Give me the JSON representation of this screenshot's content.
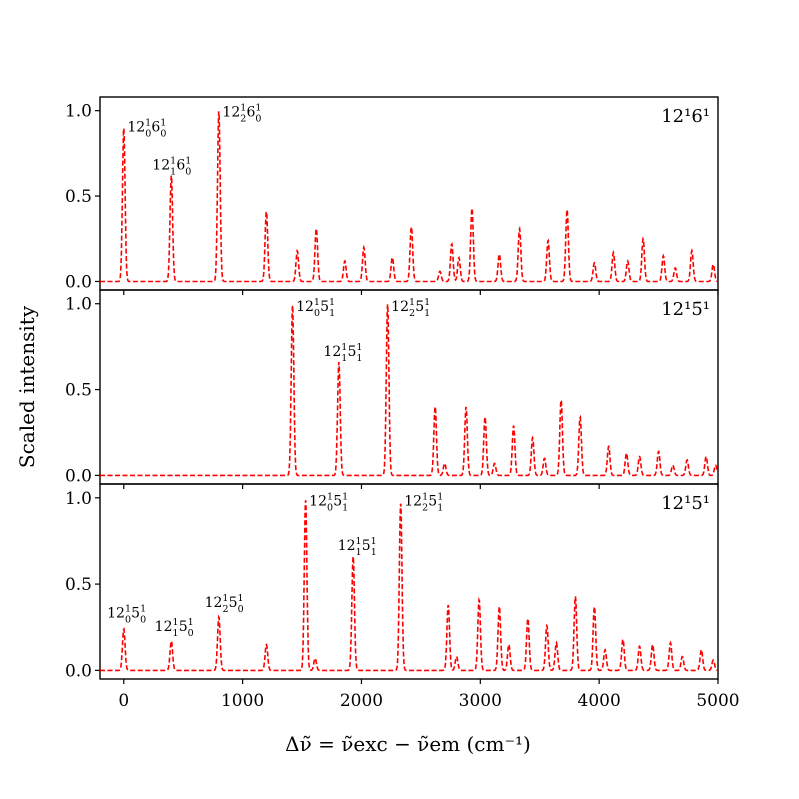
{
  "chart_data": {
    "type": "line",
    "xlabel": "Δν̃ = ν̃exc − ν̃em (cm⁻¹)",
    "ylabel": "Scaled intensity",
    "xlim": [
      -200,
      5000
    ],
    "ylim": [
      -0.05,
      1.08
    ],
    "x_ticks": [
      0,
      1000,
      2000,
      3000,
      4000,
      5000
    ],
    "y_ticks": [
      0.0,
      0.5,
      1.0
    ],
    "x_tick_labels": [
      "0",
      "1000",
      "2000",
      "3000",
      "4000",
      "5000"
    ],
    "y_tick_labels": [
      "0.0",
      "0.5",
      "1.0"
    ],
    "line_color": "#ff0000",
    "line_style": "dashed",
    "panels": [
      {
        "label": "12¹6¹",
        "series": [
          {
            "name": "12¹6¹",
            "peaks": [
              {
                "x": 0,
                "y": 0.9
              },
              {
                "x": 400,
                "y": 0.62
              },
              {
                "x": 800,
                "y": 1.0
              },
              {
                "x": 1200,
                "y": 0.41
              },
              {
                "x": 1460,
                "y": 0.18
              },
              {
                "x": 1620,
                "y": 0.31
              },
              {
                "x": 1860,
                "y": 0.12
              },
              {
                "x": 2020,
                "y": 0.2
              },
              {
                "x": 2260,
                "y": 0.14
              },
              {
                "x": 2420,
                "y": 0.32
              },
              {
                "x": 2660,
                "y": 0.06
              },
              {
                "x": 2760,
                "y": 0.22
              },
              {
                "x": 2820,
                "y": 0.14
              },
              {
                "x": 2930,
                "y": 0.43
              },
              {
                "x": 3160,
                "y": 0.16
              },
              {
                "x": 3330,
                "y": 0.31
              },
              {
                "x": 3570,
                "y": 0.24
              },
              {
                "x": 3730,
                "y": 0.42
              },
              {
                "x": 3960,
                "y": 0.11
              },
              {
                "x": 4120,
                "y": 0.17
              },
              {
                "x": 4240,
                "y": 0.12
              },
              {
                "x": 4370,
                "y": 0.25
              },
              {
                "x": 4540,
                "y": 0.15
              },
              {
                "x": 4640,
                "y": 0.08
              },
              {
                "x": 4780,
                "y": 0.18
              },
              {
                "x": 4960,
                "y": 0.1
              }
            ]
          }
        ],
        "annotations": [
          {
            "x": 30,
            "y": 0.9,
            "parts": [
              {
                "t": "12"
              },
              {
                "sup": "1",
                "sub": "0"
              },
              {
                "t": "6"
              },
              {
                "sup": "1",
                "sub": "0"
              }
            ]
          },
          {
            "x": 240,
            "y": 0.68,
            "parts": [
              {
                "t": "12"
              },
              {
                "sup": "1",
                "sub": "1"
              },
              {
                "t": "6"
              },
              {
                "sup": "1",
                "sub": "0"
              }
            ]
          },
          {
            "x": 830,
            "y": 0.99,
            "parts": [
              {
                "t": "12"
              },
              {
                "sup": "1",
                "sub": "2"
              },
              {
                "t": "6"
              },
              {
                "sup": "1",
                "sub": "0"
              }
            ]
          }
        ]
      },
      {
        "label": "12¹5̄¹",
        "series": [
          {
            "name": "12¹5̄¹",
            "peaks": [
              {
                "x": 1420,
                "y": 0.99
              },
              {
                "x": 1810,
                "y": 0.66
              },
              {
                "x": 2220,
                "y": 1.0
              },
              {
                "x": 2620,
                "y": 0.4
              },
              {
                "x": 2700,
                "y": 0.07
              },
              {
                "x": 2880,
                "y": 0.4
              },
              {
                "x": 3040,
                "y": 0.34
              },
              {
                "x": 3120,
                "y": 0.07
              },
              {
                "x": 3280,
                "y": 0.29
              },
              {
                "x": 3440,
                "y": 0.22
              },
              {
                "x": 3540,
                "y": 0.1
              },
              {
                "x": 3680,
                "y": 0.44
              },
              {
                "x": 3840,
                "y": 0.34
              },
              {
                "x": 4080,
                "y": 0.17
              },
              {
                "x": 4230,
                "y": 0.13
              },
              {
                "x": 4340,
                "y": 0.11
              },
              {
                "x": 4500,
                "y": 0.14
              },
              {
                "x": 4620,
                "y": 0.06
              },
              {
                "x": 4740,
                "y": 0.09
              },
              {
                "x": 4900,
                "y": 0.11
              },
              {
                "x": 4980,
                "y": 0.06
              }
            ]
          }
        ],
        "annotations": [
          {
            "x": 1450,
            "y": 0.98,
            "parts": [
              {
                "t": "12"
              },
              {
                "sup": "1",
                "sub": "0"
              },
              {
                "t": "5̄",
                "bar": true
              },
              {
                "sup": "1",
                "sub": "1"
              }
            ]
          },
          {
            "x": 1680,
            "y": 0.72,
            "parts": [
              {
                "t": "12"
              },
              {
                "sup": "1",
                "sub": "1"
              },
              {
                "t": "5̄",
                "bar": true
              },
              {
                "sup": "1",
                "sub": "1"
              }
            ]
          },
          {
            "x": 2250,
            "y": 0.98,
            "parts": [
              {
                "t": "12"
              },
              {
                "sup": "1",
                "sub": "2"
              },
              {
                "t": "5̄",
                "bar": true
              },
              {
                "sup": "1",
                "sub": "1"
              }
            ]
          }
        ]
      },
      {
        "label": "12¹5¹",
        "series": [
          {
            "name": "12¹5¹",
            "peaks": [
              {
                "x": 0,
                "y": 0.24
              },
              {
                "x": 400,
                "y": 0.17
              },
              {
                "x": 800,
                "y": 0.31
              },
              {
                "x": 1200,
                "y": 0.15
              },
              {
                "x": 1530,
                "y": 0.99
              },
              {
                "x": 1610,
                "y": 0.07
              },
              {
                "x": 1930,
                "y": 0.66
              },
              {
                "x": 2330,
                "y": 0.97
              },
              {
                "x": 2730,
                "y": 0.38
              },
              {
                "x": 2800,
                "y": 0.08
              },
              {
                "x": 2990,
                "y": 0.41
              },
              {
                "x": 3160,
                "y": 0.37
              },
              {
                "x": 3240,
                "y": 0.15
              },
              {
                "x": 3400,
                "y": 0.3
              },
              {
                "x": 3560,
                "y": 0.26
              },
              {
                "x": 3640,
                "y": 0.16
              },
              {
                "x": 3800,
                "y": 0.43
              },
              {
                "x": 3960,
                "y": 0.37
              },
              {
                "x": 4050,
                "y": 0.12
              },
              {
                "x": 4200,
                "y": 0.18
              },
              {
                "x": 4340,
                "y": 0.14
              },
              {
                "x": 4450,
                "y": 0.15
              },
              {
                "x": 4600,
                "y": 0.16
              },
              {
                "x": 4700,
                "y": 0.08
              },
              {
                "x": 4860,
                "y": 0.12
              },
              {
                "x": 4960,
                "y": 0.06
              }
            ]
          }
        ],
        "annotations": [
          {
            "x": -140,
            "y": 0.33,
            "parts": [
              {
                "t": "12"
              },
              {
                "sup": "1",
                "sub": "0"
              },
              {
                "t": "5"
              },
              {
                "sup": "1",
                "sub": "0"
              }
            ]
          },
          {
            "x": 260,
            "y": 0.25,
            "parts": [
              {
                "t": "12"
              },
              {
                "sup": "1",
                "sub": "1"
              },
              {
                "t": "5"
              },
              {
                "sup": "1",
                "sub": "0"
              }
            ]
          },
          {
            "x": 680,
            "y": 0.39,
            "parts": [
              {
                "t": "12"
              },
              {
                "sup": "1",
                "sub": "2"
              },
              {
                "t": "5"
              },
              {
                "sup": "1",
                "sub": "0"
              }
            ]
          },
          {
            "x": 1560,
            "y": 0.98,
            "parts": [
              {
                "t": "12"
              },
              {
                "sup": "1",
                "sub": "0"
              },
              {
                "t": "5"
              },
              {
                "sup": "1",
                "sub": "1"
              }
            ]
          },
          {
            "x": 1800,
            "y": 0.72,
            "parts": [
              {
                "t": "12"
              },
              {
                "sup": "1",
                "sub": "1"
              },
              {
                "t": "5"
              },
              {
                "sup": "1",
                "sub": "1"
              }
            ]
          },
          {
            "x": 2360,
            "y": 0.98,
            "parts": [
              {
                "t": "12"
              },
              {
                "sup": "1",
                "sub": "2"
              },
              {
                "t": "5"
              },
              {
                "sup": "1",
                "sub": "1"
              }
            ]
          }
        ]
      }
    ]
  }
}
